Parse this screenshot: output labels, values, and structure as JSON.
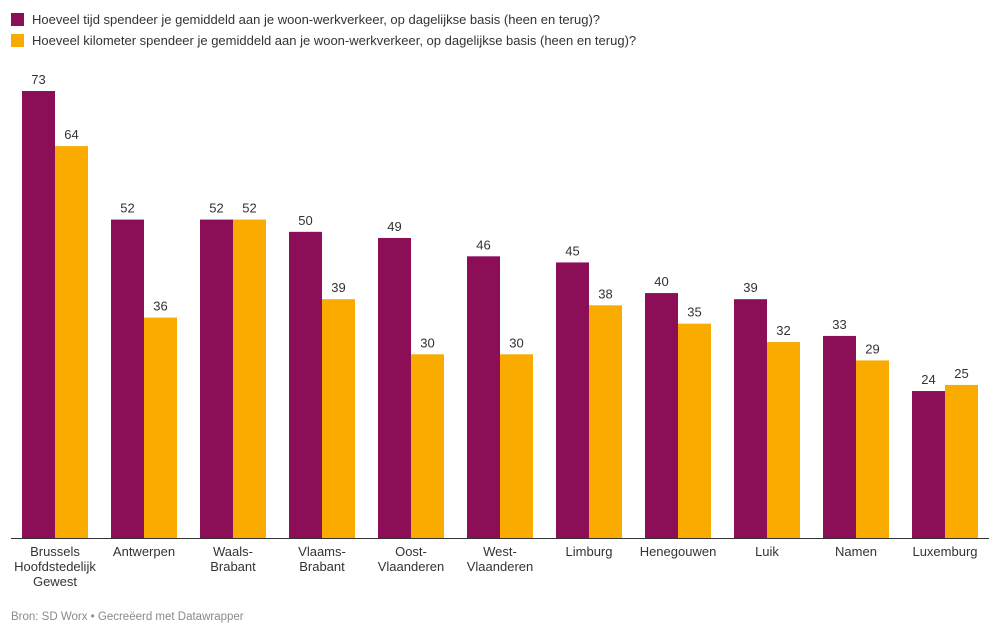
{
  "chart_data": {
    "type": "bar",
    "categories": [
      [
        "Brussels",
        "Hoofdstedelijk",
        "Gewest"
      ],
      [
        "Antwerpen"
      ],
      [
        "Waals-",
        "Brabant"
      ],
      [
        "Vlaams-",
        "Brabant"
      ],
      [
        "Oost-",
        "Vlaanderen"
      ],
      [
        "West-",
        "Vlaanderen"
      ],
      [
        "Limburg"
      ],
      [
        "Henegouwen"
      ],
      [
        "Luik"
      ],
      [
        "Namen"
      ],
      [
        "Luxemburg"
      ]
    ],
    "series": [
      {
        "name": "Hoeveel tijd spendeer je gemiddeld aan je woon-werkverkeer, op dagelijkse basis (heen en terug)?",
        "color": "#8b0e57",
        "values": [
          73,
          52,
          52,
          50,
          49,
          46,
          45,
          40,
          39,
          33,
          24
        ]
      },
      {
        "name": "Hoeveel kilometer spendeer je gemiddeld aan je woon-werkverkeer, op dagelijkse basis (heen en terug)?",
        "color": "#f9ab00",
        "values": [
          64,
          36,
          52,
          39,
          30,
          30,
          38,
          35,
          32,
          29,
          25
        ]
      }
    ],
    "ylim": [
      0,
      73
    ],
    "grid": false,
    "legend": "top-left"
  },
  "footer": {
    "source": "Bron: SD Worx • Gecreëerd met Datawrapper"
  }
}
